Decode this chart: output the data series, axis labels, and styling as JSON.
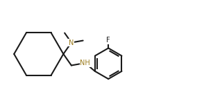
{
  "bg_color": "#ffffff",
  "bond_color": "#1a1a1a",
  "N_color": "#9B7A1A",
  "F_color": "#1a1a1a",
  "line_width": 1.5,
  "font_size": 7.0,
  "figsize": [
    2.94,
    1.56
  ],
  "dpi": 100,
  "xlim": [
    0.0,
    9.0
  ],
  "ylim": [
    2.5,
    7.5
  ]
}
